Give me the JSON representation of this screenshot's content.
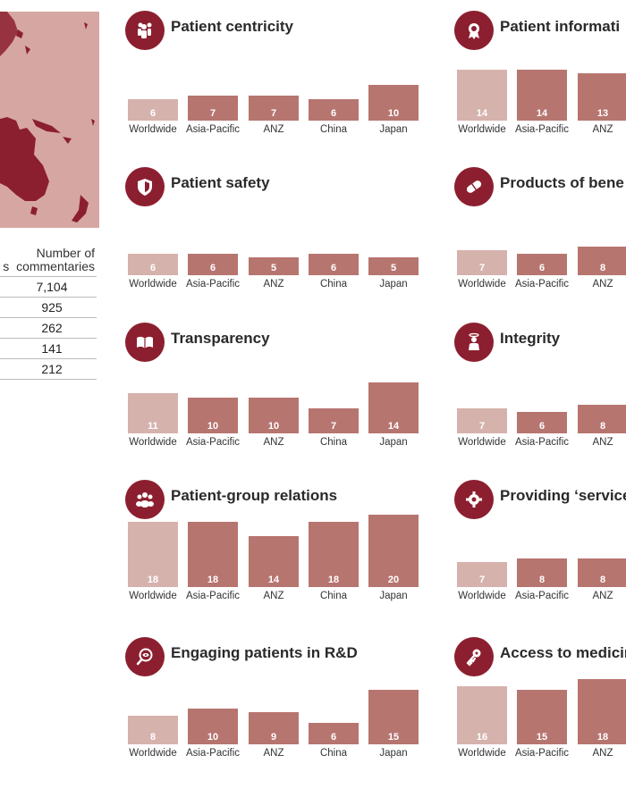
{
  "colors": {
    "highlight": "#d6b2ad",
    "bar": "#b77570",
    "icon": "#8c1f2f",
    "map_bg": "#d6a7a2",
    "land": "#8c1f2f"
  },
  "stats": {
    "header": [
      "Number of",
      "s  commentaries"
    ],
    "values": [
      "7,104",
      "925",
      "262",
      "141",
      "212"
    ]
  },
  "chart_data": [
    {
      "type": "bar",
      "title": "Patient centricity",
      "icon": "people-group-icon",
      "categories": [
        "Worldwide",
        "Asia-Pacific",
        "ANZ",
        "China",
        "Japan"
      ],
      "values": [
        6,
        7,
        7,
        6,
        10
      ]
    },
    {
      "type": "bar",
      "title": "Patient safety",
      "icon": "shield-icon",
      "categories": [
        "Worldwide",
        "Asia-Pacific",
        "ANZ",
        "China",
        "Japan"
      ],
      "values": [
        6,
        6,
        5,
        6,
        5
      ]
    },
    {
      "type": "bar",
      "title": "Transparency",
      "icon": "open-book-icon",
      "categories": [
        "Worldwide",
        "Asia-Pacific",
        "ANZ",
        "China",
        "Japan"
      ],
      "values": [
        11,
        10,
        10,
        7,
        14
      ]
    },
    {
      "type": "bar",
      "title": "Patient-group relations",
      "icon": "group-icon",
      "categories": [
        "Worldwide",
        "Asia-Pacific",
        "ANZ",
        "China",
        "Japan"
      ],
      "values": [
        18,
        18,
        14,
        18,
        20
      ]
    },
    {
      "type": "bar",
      "title": "Engaging patients in R&D",
      "icon": "magnifier-eye-icon",
      "categories": [
        "Worldwide",
        "Asia-Pacific",
        "ANZ",
        "China",
        "Japan"
      ],
      "values": [
        8,
        10,
        9,
        6,
        15
      ]
    },
    {
      "type": "bar",
      "title": "Patient informati",
      "icon": "award-badge-icon",
      "categories": [
        "Worldwide",
        "Asia-Pacific",
        "ANZ"
      ],
      "values": [
        14,
        14,
        13
      ]
    },
    {
      "type": "bar",
      "title": "Products of bene",
      "icon": "pill-icon",
      "categories": [
        "Worldwide",
        "Asia-Pacific",
        "ANZ"
      ],
      "values": [
        7,
        6,
        8
      ]
    },
    {
      "type": "bar",
      "title": "Integrity",
      "icon": "person-halo-icon",
      "categories": [
        "Worldwide",
        "Asia-Pacific",
        "ANZ"
      ],
      "values": [
        7,
        6,
        8
      ]
    },
    {
      "type": "bar",
      "title": "Providing ‘service",
      "icon": "gear-icon",
      "categories": [
        "Worldwide",
        "Asia-Pacific",
        "ANZ"
      ],
      "values": [
        7,
        8,
        8
      ]
    },
    {
      "type": "bar",
      "title": "Access to medicin",
      "icon": "key-icon",
      "categories": [
        "Worldwide",
        "Asia-Pacific",
        "ANZ"
      ],
      "values": [
        16,
        15,
        18
      ]
    }
  ]
}
